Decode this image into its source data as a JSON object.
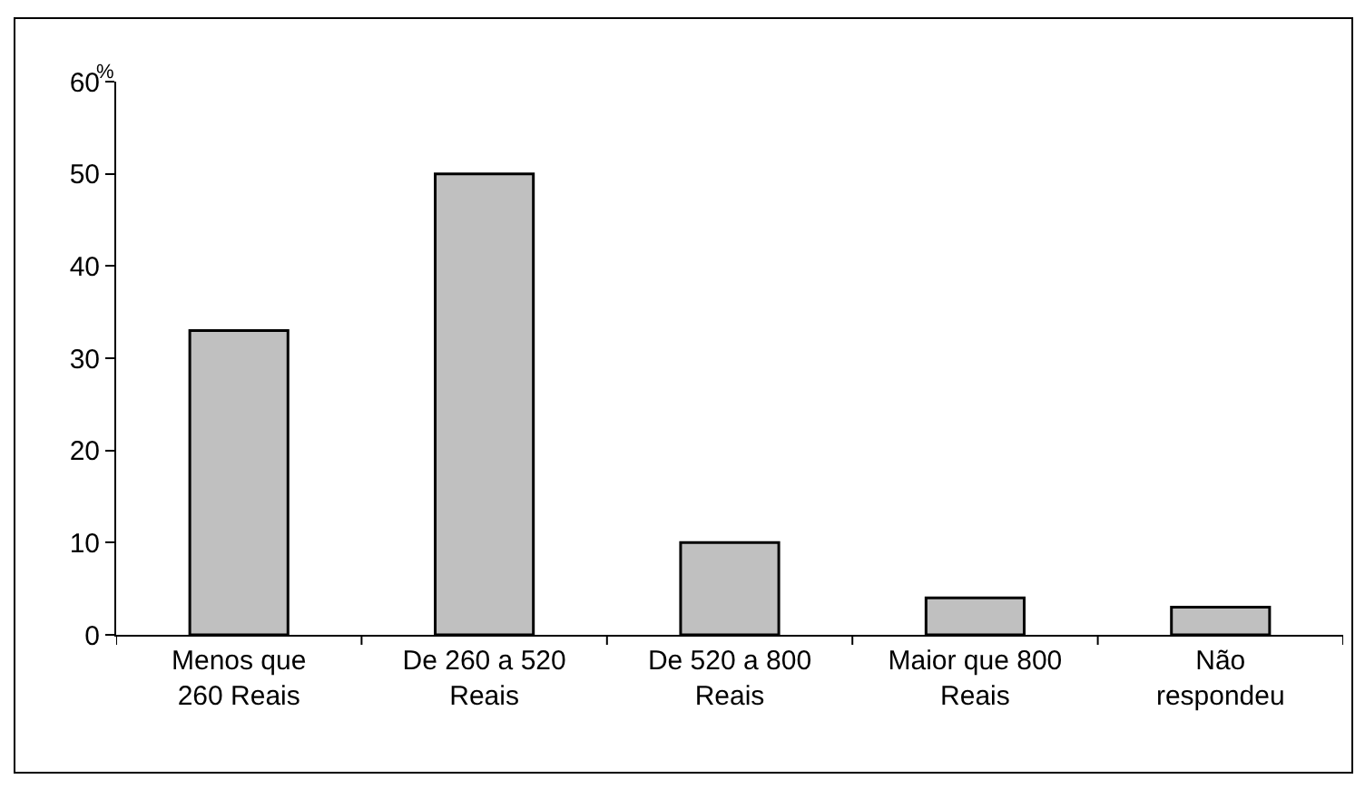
{
  "chart_data": {
    "type": "bar",
    "categories": [
      "Menos que\n260 Reais",
      "De 260 a 520\nReais",
      "De 520 a 800\nReais",
      "Maior que 800\nReais",
      "Não\nrespondeu"
    ],
    "values": [
      33,
      50,
      10,
      4,
      3
    ],
    "color": "#c0c0c0",
    "ylabel": "%",
    "ylim": [
      0,
      60
    ],
    "yticks": [
      0,
      10,
      20,
      30,
      40,
      50,
      60
    ]
  }
}
